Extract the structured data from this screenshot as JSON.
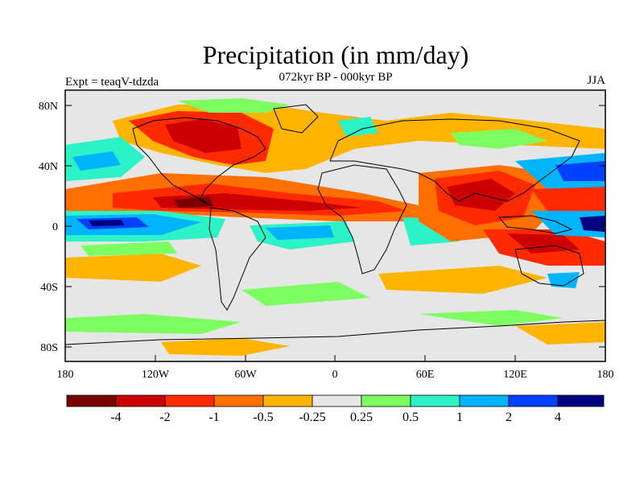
{
  "figure": {
    "title": "Precipitation (in mm/day)",
    "subtitle": "072kyr BP - 000kyr BP",
    "left_label": "Expt = teaqV-tdzda",
    "right_label": "JJA"
  },
  "axes": {
    "lat_ticks": [
      "80N",
      "40N",
      "0",
      "40S",
      "80S"
    ],
    "lon_ticks": [
      "180",
      "120W",
      "60W",
      "0",
      "60E",
      "120E",
      "180"
    ]
  },
  "colorbar": {
    "colors": [
      "#7a0000",
      "#cc0000",
      "#ff2a00",
      "#ff7000",
      "#ffb400",
      "#e6e6e6",
      "#7dff62",
      "#2cf2c8",
      "#00b4ff",
      "#0040ff",
      "#000080"
    ],
    "labels": [
      "-4",
      "-2",
      "-1",
      "-0.5",
      "-0.25",
      "0.25",
      "0.5",
      "1",
      "2",
      "4"
    ]
  },
  "colors": {
    "ocean_neutral": "#e6e6e6",
    "coastline": "#000000"
  }
}
